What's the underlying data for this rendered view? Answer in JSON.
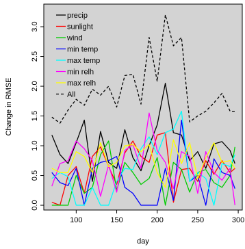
{
  "chart_data": {
    "type": "line",
    "title": "",
    "xlabel": "day",
    "ylabel": "Change in RMSE",
    "xlim": [
      60,
      305
    ],
    "ylim": [
      -0.08,
      3.38
    ],
    "xticks": [
      100,
      150,
      200,
      250,
      300
    ],
    "yticks": [
      0.0,
      0.5,
      1.0,
      1.5,
      2.0,
      2.5,
      3.0
    ],
    "ytick_labels": [
      "0.0",
      "0.5",
      "1.0",
      "1.5",
      "2.0",
      "2.5",
      "3.0"
    ],
    "background": "#d3d3d3",
    "grid": false,
    "legend_position": "top-left",
    "x": [
      70,
      80,
      90,
      100,
      110,
      120,
      130,
      140,
      150,
      160,
      170,
      180,
      190,
      200,
      210,
      220,
      230,
      240,
      250,
      260,
      270,
      280,
      290,
      296
    ],
    "series": [
      {
        "name": "precip",
        "color": "#000000",
        "dash": "solid",
        "values": [
          1.18,
          0.85,
          0.7,
          1.05,
          1.43,
          0.4,
          1.24,
          0.72,
          0.62,
          1.27,
          0.8,
          0.58,
          1.0,
          1.35,
          2.05,
          1.22,
          1.18,
          0.75,
          0.9,
          0.62,
          1.03,
          1.07,
          0.92,
          0.7
        ]
      },
      {
        "name": "sunlight",
        "color": "#ff0000",
        "dash": "solid",
        "values": [
          0.05,
          0.0,
          0.5,
          0.65,
          0.2,
          0.82,
          0.98,
          0.65,
          0.35,
          0.88,
          1.08,
          0.82,
          0.72,
          1.18,
          1.22,
          0.05,
          0.6,
          0.62,
          0.4,
          0.75,
          0.52,
          0.75,
          0.55,
          0.62
        ]
      },
      {
        "name": "wind",
        "color": "#00cc00",
        "dash": "solid",
        "values": [
          0.0,
          0.0,
          0.0,
          0.5,
          0.2,
          0.3,
          0.85,
          1.08,
          0.25,
          0.72,
          0.55,
          0.35,
          0.45,
          0.8,
          0.0,
          0.72,
          0.6,
          0.22,
          0.55,
          0.6,
          0.38,
          0.3,
          0.5,
          0.98
        ]
      },
      {
        "name": "min temp",
        "color": "#0000ff",
        "dash": "solid",
        "values": [
          0.55,
          0.38,
          0.33,
          0.62,
          0.0,
          0.62,
          0.72,
          0.75,
          0.82,
          0.3,
          0.2,
          0.0,
          0.0,
          0.0,
          0.62,
          0.08,
          1.43,
          0.4,
          0.5,
          0.0,
          0.78,
          0.55,
          0.5,
          0.28
        ]
      },
      {
        "name": "max temp",
        "color": "#00ffff",
        "dash": "solid",
        "values": [
          0.45,
          0.55,
          0.48,
          0.0,
          0.0,
          0.3,
          0.0,
          0.0,
          0.4,
          0.62,
          0.6,
          0.95,
          1.15,
          0.85,
          1.22,
          1.28,
          1.58,
          0.4,
          0.55,
          0.45,
          0.0,
          0.7,
          0.65,
          0.85
        ]
      },
      {
        "name": "min relh",
        "color": "#ff00ff",
        "dash": "solid",
        "values": [
          0.32,
          0.7,
          0.75,
          1.08,
          0.95,
          0.75,
          0.15,
          0.68,
          0.22,
          0.92,
          1.02,
          0.62,
          1.55,
          0.92,
          0.72,
          0.28,
          0.9,
          0.82,
          0.2,
          0.9,
          0.55,
          0.42,
          0.62,
          0.0
        ]
      },
      {
        "name": "max relh",
        "color": "#ffff00",
        "dash": "solid",
        "values": [
          0.62,
          0.55,
          0.55,
          0.9,
          0.82,
          0.55,
          1.05,
          0.65,
          0.72,
          1.0,
          1.02,
          0.9,
          1.02,
          0.55,
          0.3,
          1.1,
          0.7,
          1.05,
          0.45,
          0.8,
          1.05,
          0.72,
          0.75,
          0.62
        ]
      },
      {
        "name": "All",
        "color": "#000000",
        "dash": "dashed",
        "values": [
          1.48,
          1.38,
          1.6,
          1.78,
          1.68,
          1.95,
          1.85,
          2.0,
          1.65,
          2.18,
          2.2,
          1.7,
          2.82,
          2.08,
          3.2,
          2.68,
          2.82,
          1.4,
          1.5,
          1.58,
          1.72,
          1.88,
          1.58,
          1.58
        ]
      }
    ]
  }
}
